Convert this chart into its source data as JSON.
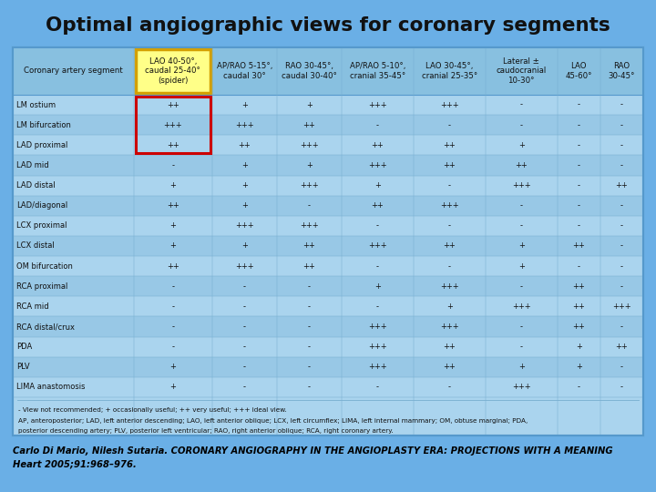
{
  "title": "Optimal angiographic views for coronary segments",
  "title_color": "#111111",
  "bg_color": "#6aafe6",
  "table_bg": "#aad4ee",
  "header_bg": "#aad4ee",
  "caption": "Carlo Di Mario, Nilesh Sutaria. CORONARY ANGIOGRAPHY IN THE ANGIOPLASTY ERA: PROJECTIONS WITH A MEANING\nHeart 2005;91:968–976.",
  "col_headers": [
    "Coronary artery segment",
    "LAO 40-50°,\ncaudal 25-40°\n(spider)",
    "AP/RAO 5-15°,\ncaudal 30°",
    "RAO 30-45°,\ncaudal 30-40°",
    "AP/RAO 5-10°,\ncranial 35-45°",
    "LAO 30-45°,\ncranial 25-35°",
    "Lateral ±\ncaudocranial\n10-30°",
    "LAO\n45-60°",
    "RAO\n30-45°"
  ],
  "rows": [
    [
      "LM ostium",
      "++",
      "+",
      "+",
      "+++",
      "+++",
      "-",
      "-",
      "-"
    ],
    [
      "LM bifurcation",
      "+++",
      "+++",
      "++",
      "-",
      "-",
      "-",
      "-",
      "-"
    ],
    [
      "LAD proximal",
      "++",
      "++",
      "+++",
      "++",
      "++",
      "+",
      "-",
      "-"
    ],
    [
      "LAD mid",
      "-",
      "+",
      "+",
      "+++",
      "++",
      "++",
      "-",
      "-"
    ],
    [
      "LAD distal",
      "+",
      "+",
      "+++",
      "+",
      "-",
      "+++",
      "-",
      "++"
    ],
    [
      "LAD/diagonal",
      "++",
      "+",
      "-",
      "++",
      "+++",
      "-",
      "-",
      "-"
    ],
    [
      "LCX proximal",
      "+",
      "+++",
      "+++",
      "-",
      "-",
      "-",
      "-",
      "-"
    ],
    [
      "LCX distal",
      "+",
      "+",
      "++",
      "+++",
      "++",
      "+",
      "++",
      "-"
    ],
    [
      "OM bifurcation",
      "++",
      "+++",
      "++",
      "-",
      "-",
      "+",
      "-",
      "-"
    ],
    [
      "RCA proximal",
      "-",
      "-",
      "-",
      "+",
      "+++",
      "-",
      "++",
      "-"
    ],
    [
      "RCA mid",
      "-",
      "-",
      "-",
      "-",
      "+",
      "+++",
      "++",
      "+++"
    ],
    [
      "RCA distal/crux",
      "-",
      "-",
      "-",
      "+++",
      "+++",
      "-",
      "++",
      "-"
    ],
    [
      "PDA",
      "-",
      "-",
      "-",
      "+++",
      "++",
      "-",
      "+",
      "++"
    ],
    [
      "PLV",
      "+",
      "-",
      "-",
      "+++",
      "++",
      "+",
      "+",
      "-"
    ],
    [
      "LIMA anastomosis",
      "+",
      "-",
      "-",
      "-",
      "-",
      "+++",
      "-",
      "-"
    ]
  ],
  "footnote1": "- View not recommended; + occasionally useful; ++ very useful; +++ ideal view.",
  "footnote2": "AP, anteroposterior; LAD, left anterior descending; LAO, left anterior oblique; LCX, left circumflex; LIMA, left internal mammary; OM, obtuse marginal; PDA,",
  "footnote3": "posterior descending artery; PLV, posterior left ventricular; RAO, right anterior oblique; RCA, right coronary artery."
}
